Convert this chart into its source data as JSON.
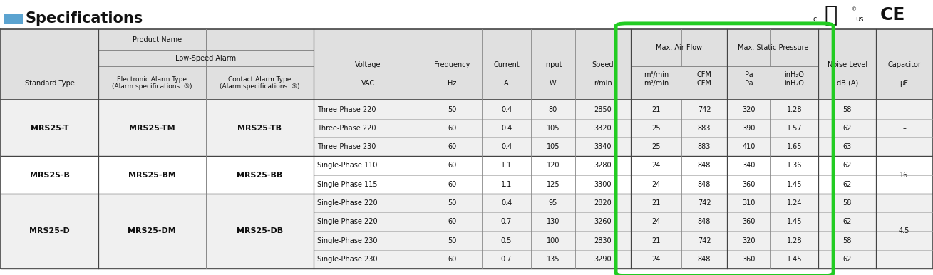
{
  "title": "Specifications",
  "title_color": "#1a1a1a",
  "title_square_color": "#5ba3d0",
  "bg_color": "#ffffff",
  "header_bg": "#e0e0e0",
  "data_bg_odd": "#f0f0f0",
  "data_bg_even": "#ffffff",
  "green_box_color": "#22cc22",
  "line_color": "#888888",
  "bold_line_color": "#444444",
  "text_font_size": 7.0,
  "header_font_size": 7.0,
  "bold_font_size": 8.5,
  "rows": [
    {
      "standard": "MRS25-T",
      "electronic": "MRS25-TM",
      "contact": "MRS25-TB",
      "data": [
        [
          "Three-Phase 220",
          "50",
          "0.4",
          "80",
          "2850",
          "21",
          "742",
          "320",
          "1.28",
          "58",
          ""
        ],
        [
          "Three-Phase 220",
          "60",
          "0.4",
          "105",
          "3320",
          "25",
          "883",
          "390",
          "1.57",
          "62",
          "–"
        ],
        [
          "Three-Phase 230",
          "60",
          "0.4",
          "105",
          "3340",
          "25",
          "883",
          "410",
          "1.65",
          "63",
          ""
        ]
      ]
    },
    {
      "standard": "MRS25-B",
      "electronic": "MRS25-BM",
      "contact": "MRS25-BB",
      "data": [
        [
          "Single-Phase 110",
          "60",
          "1.1",
          "120",
          "3280",
          "24",
          "848",
          "340",
          "1.36",
          "62",
          ""
        ],
        [
          "Single-Phase 115",
          "60",
          "1.1",
          "125",
          "3300",
          "24",
          "848",
          "360",
          "1.45",
          "62",
          "16"
        ]
      ]
    },
    {
      "standard": "MRS25-D",
      "electronic": "MRS25-DM",
      "contact": "MRS25-DB",
      "data": [
        [
          "Single-Phase 220",
          "50",
          "0.4",
          "95",
          "2820",
          "21",
          "742",
          "310",
          "1.24",
          "58",
          ""
        ],
        [
          "Single-Phase 220",
          "60",
          "0.7",
          "130",
          "3260",
          "24",
          "848",
          "360",
          "1.45",
          "62",
          ""
        ],
        [
          "Single-Phase 230",
          "50",
          "0.5",
          "100",
          "2830",
          "21",
          "742",
          "320",
          "1.28",
          "58",
          ""
        ],
        [
          "Single-Phase 230",
          "60",
          "0.7",
          "135",
          "3290",
          "24",
          "848",
          "360",
          "1.45",
          "62",
          "4.5"
        ]
      ]
    }
  ]
}
